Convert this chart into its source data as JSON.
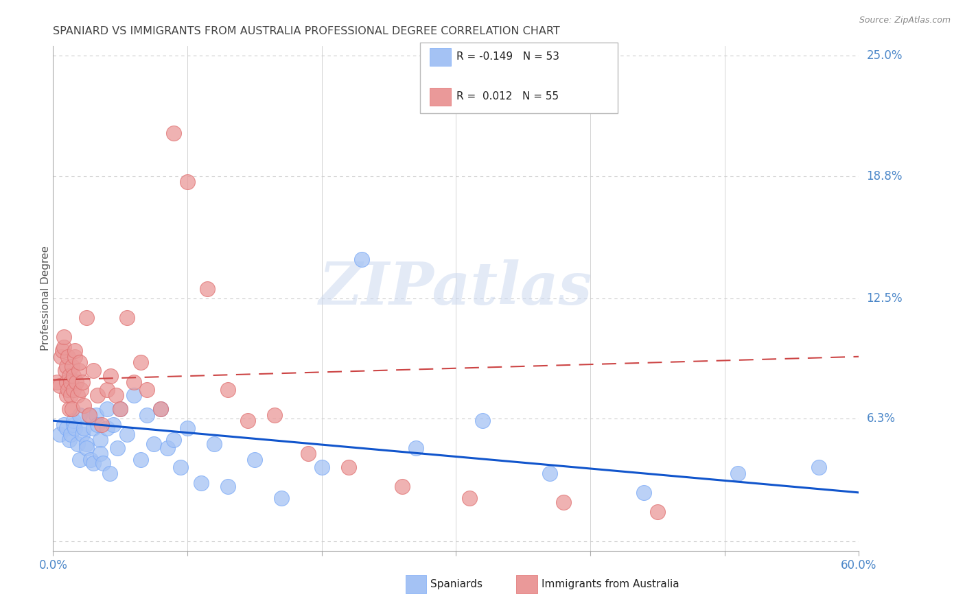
{
  "title": "SPANIARD VS IMMIGRANTS FROM AUSTRALIA PROFESSIONAL DEGREE CORRELATION CHART",
  "source": "Source: ZipAtlas.com",
  "ylabel": "Professional Degree",
  "right_yticks": [
    0.0,
    0.063,
    0.125,
    0.188,
    0.25
  ],
  "right_yticklabels": [
    "",
    "6.3%",
    "12.5%",
    "18.8%",
    "25.0%"
  ],
  "xlim": [
    0.0,
    0.6
  ],
  "ylim": [
    -0.005,
    0.255
  ],
  "watermark": "ZIPatlas",
  "legend_blue_R": "-0.149",
  "legend_blue_N": "53",
  "legend_pink_R": "0.012",
  "legend_pink_N": "55",
  "blue_color": "#a4c2f4",
  "pink_color": "#ea9999",
  "blue_line_color": "#1155cc",
  "pink_line_color": "#cc4444",
  "title_color": "#434343",
  "axis_label_color": "#4a86c8",
  "background_color": "#ffffff",
  "blue_trend_x0": 0.0,
  "blue_trend_y0": 0.062,
  "blue_trend_x1": 0.6,
  "blue_trend_y1": 0.025,
  "pink_trend_x0": 0.0,
  "pink_trend_y0": 0.083,
  "pink_trend_x1": 0.6,
  "pink_trend_y1": 0.095,
  "spaniards_x": [
    0.005,
    0.008,
    0.01,
    0.012,
    0.013,
    0.015,
    0.015,
    0.016,
    0.018,
    0.02,
    0.02,
    0.022,
    0.023,
    0.025,
    0.025,
    0.027,
    0.028,
    0.03,
    0.03,
    0.032,
    0.033,
    0.035,
    0.035,
    0.037,
    0.04,
    0.04,
    0.042,
    0.045,
    0.048,
    0.05,
    0.055,
    0.06,
    0.065,
    0.07,
    0.075,
    0.08,
    0.085,
    0.09,
    0.095,
    0.1,
    0.11,
    0.12,
    0.13,
    0.15,
    0.17,
    0.2,
    0.23,
    0.27,
    0.32,
    0.37,
    0.44,
    0.51,
    0.57
  ],
  "spaniards_y": [
    0.055,
    0.06,
    0.058,
    0.052,
    0.055,
    0.06,
    0.062,
    0.058,
    0.05,
    0.065,
    0.042,
    0.055,
    0.058,
    0.05,
    0.048,
    0.065,
    0.042,
    0.058,
    0.04,
    0.065,
    0.06,
    0.052,
    0.045,
    0.04,
    0.068,
    0.058,
    0.035,
    0.06,
    0.048,
    0.068,
    0.055,
    0.075,
    0.042,
    0.065,
    0.05,
    0.068,
    0.048,
    0.052,
    0.038,
    0.058,
    0.03,
    0.05,
    0.028,
    0.042,
    0.022,
    0.038,
    0.145,
    0.048,
    0.062,
    0.035,
    0.025,
    0.035,
    0.038
  ],
  "australia_x": [
    0.003,
    0.005,
    0.006,
    0.007,
    0.008,
    0.008,
    0.009,
    0.01,
    0.01,
    0.01,
    0.011,
    0.011,
    0.012,
    0.012,
    0.013,
    0.013,
    0.014,
    0.014,
    0.015,
    0.015,
    0.016,
    0.016,
    0.017,
    0.018,
    0.019,
    0.02,
    0.021,
    0.022,
    0.023,
    0.025,
    0.027,
    0.03,
    0.033,
    0.036,
    0.04,
    0.043,
    0.047,
    0.05,
    0.055,
    0.06,
    0.065,
    0.07,
    0.08,
    0.09,
    0.1,
    0.115,
    0.13,
    0.145,
    0.165,
    0.19,
    0.22,
    0.26,
    0.31,
    0.38,
    0.45
  ],
  "australia_y": [
    0.082,
    0.08,
    0.095,
    0.098,
    0.1,
    0.105,
    0.088,
    0.075,
    0.082,
    0.09,
    0.095,
    0.078,
    0.085,
    0.068,
    0.082,
    0.075,
    0.09,
    0.068,
    0.078,
    0.085,
    0.095,
    0.098,
    0.082,
    0.075,
    0.088,
    0.092,
    0.078,
    0.082,
    0.07,
    0.115,
    0.065,
    0.088,
    0.075,
    0.06,
    0.078,
    0.085,
    0.075,
    0.068,
    0.115,
    0.082,
    0.092,
    0.078,
    0.068,
    0.21,
    0.185,
    0.13,
    0.078,
    0.062,
    0.065,
    0.045,
    0.038,
    0.028,
    0.022,
    0.02,
    0.015
  ]
}
